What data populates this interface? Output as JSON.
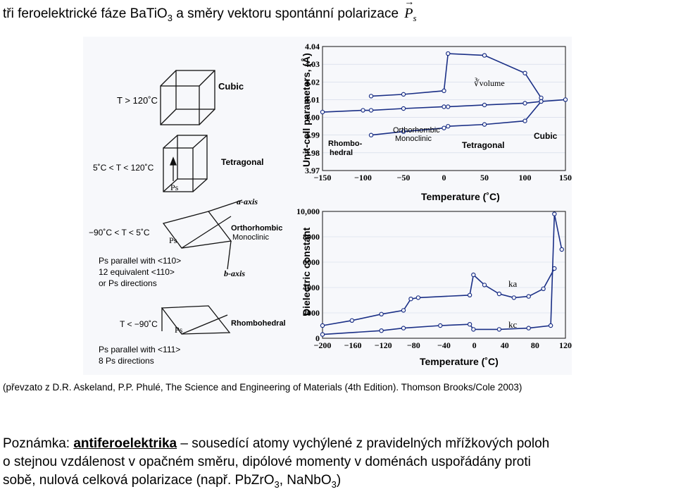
{
  "title": {
    "text": "tři feroelektrické fáze BaTiO",
    "sub3": "3",
    "rest": " a směry vektoru spontánní polarizace ",
    "ps_letter": "P",
    "ps_sub": "s",
    "arrow": "→"
  },
  "figure": {
    "phase_diagrams": {
      "cubic": {
        "label": "Cubic",
        "condition": "T > 120˚C"
      },
      "tetragonal": {
        "label": "Tetragonal",
        "condition": "5˚C < T < 120˚C",
        "ps": "Ps"
      },
      "orthorhombic": {
        "label": "Orthorhombic",
        "label2": "Monoclinic",
        "condition": "−90˚C < T < 5˚C",
        "ps": "Ps",
        "a_axis": "a-axis",
        "b_axis": "b-axis",
        "note1": "Ps parallel with <110>",
        "note2": "12 equivalent <110>",
        "note3": "or Ps directions"
      },
      "rhombohedral": {
        "label": "Rhombohedral",
        "condition": "T < −90˚C",
        "ps": "Ps",
        "note1": "Ps parallel with <111>",
        "note2": "8 Ps directions"
      }
    },
    "lattice_chart": {
      "ylabel": "Unit-cell parameters, (Å)",
      "yticks": [
        "4.04",
        "4.03",
        "4.02",
        "4.01",
        "4.00",
        "3.99",
        "3.98",
        "3.97"
      ],
      "xticks": [
        "−150",
        "−100",
        "−50",
        "0",
        "50",
        "100",
        "150"
      ],
      "xlabel": "Temperature (˚C)",
      "labels": {
        "volume": "∛volume",
        "rhombo1": "Rhombo-",
        "rhombo2": "hedral",
        "ortho": "Orthorhombic",
        "mono": "Monoclinic",
        "tetra": "Tetragonal",
        "cubic": "Cubic"
      }
    },
    "dielectric_chart": {
      "ylabel": "Dielectric constant",
      "yticks": [
        "10,000",
        "8000",
        "6000",
        "4000",
        "2000",
        "0"
      ],
      "xticks": [
        "−200",
        "−160",
        "−120",
        "−80",
        "−40",
        "0",
        "40",
        "80",
        "120"
      ],
      "xlabel": "Temperature (˚C)",
      "labels": {
        "ka": "ka",
        "kc": "kc"
      }
    }
  },
  "chart_data": [
    {
      "type": "line",
      "title": "",
      "xlabel": "Temperature (˚C)",
      "ylabel": "Unit-cell parameters, (Å)",
      "xlim": [
        -150,
        150
      ],
      "ylim": [
        3.97,
        4.04
      ],
      "series": [
        {
          "name": "",
          "x": [
            -150,
            -100,
            -90,
            -50,
            0,
            5,
            50,
            100,
            120,
            150
          ],
          "y": [
            4.003,
            4.004,
            4.004,
            4.005,
            4.006,
            4.006,
            4.007,
            4.008,
            4.009,
            4.01
          ]
        },
        {
          "name": "",
          "x": [
            -90,
            -50,
            0,
            5,
            50,
            100,
            120
          ],
          "y": [
            4.012,
            4.013,
            4.015,
            4.036,
            4.035,
            4.025,
            4.011
          ]
        },
        {
          "name": "",
          "x": [
            -90,
            -50,
            0,
            5,
            50,
            100,
            120
          ],
          "y": [
            3.99,
            3.992,
            3.994,
            3.995,
            3.996,
            3.998,
            4.009
          ]
        }
      ]
    },
    {
      "type": "line",
      "title": "",
      "xlabel": "Temperature (˚C)",
      "ylabel": "Dielectric constant",
      "xlim": [
        -200,
        130
      ],
      "ylim": [
        0,
        10000
      ],
      "series": [
        {
          "name": "ka",
          "x": [
            -200,
            -160,
            -120,
            -90,
            -80,
            -70,
            0,
            5,
            20,
            40,
            60,
            80,
            100,
            115
          ],
          "y": [
            1000,
            1400,
            1900,
            2200,
            3100,
            3200,
            3400,
            5000,
            4200,
            3500,
            3200,
            3300,
            3900,
            5500
          ]
        },
        {
          "name": "kc",
          "x": [
            -200,
            -120,
            -90,
            -40,
            0,
            5,
            40,
            80,
            110,
            115,
            125
          ],
          "y": [
            300,
            600,
            800,
            1000,
            1100,
            700,
            700,
            800,
            1000,
            9800,
            7000
          ]
        }
      ]
    }
  ],
  "caption": "(převzato z D.R. Askeland, P.P. Phulé, The Science and Engineering of Materials (4th Edition). Thomson Brooks/Cole 2003)",
  "note": {
    "prefix": "Poznámka: ",
    "term": "antiferoelektrika",
    "dash": " – ",
    "line1": "sousedící atomy vychýlené z pravidelných mřížkových poloh",
    "line2": "o stejnou vzdálenost v opačném směru, dipólové momenty v doménách uspořádány proti",
    "line3a": "sobě, nulová celková polarizace (např. PbZrO",
    "sub3a": "3",
    "mid": ", NaNbO",
    "sub3b": "3",
    "end": ")"
  }
}
